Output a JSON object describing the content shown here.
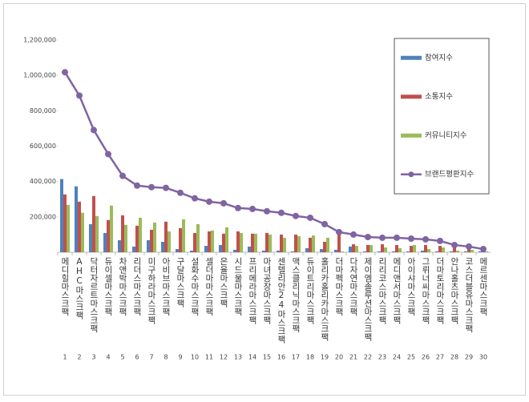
{
  "chart_data": {
    "type": "bar",
    "categories": [
      "메디힐마스크팩",
      "AHC마스크팩",
      "닥터자르트마스크팩",
      "듀이셀마스크팩",
      "차앤박마스크팩",
      "리더스마스크팩",
      "미구하라마스크팩",
      "아비브마스크팩",
      "구달마스크팩",
      "설화수마스크팩",
      "셀더마마스크팩",
      "은율마스크팩",
      "시드물마스크팩",
      "프리메라마스크팩",
      "마녀공장마스크팩",
      "센텔리안24마스크팩",
      "맥스클리닉마스크팩",
      "듀이트리마스크팩",
      "홀리카홀리카마스크팩",
      "더마펙마스크팩",
      "다자연마스크팩",
      "제이엠솔루션마스크팩",
      "리리코스마스크팩",
      "메디앤서마스크팩",
      "아이샤마스크팩",
      "그뤼너씨마스크팩",
      "더마토리마스크팩",
      "안나홀츠마스크팩",
      "코스더블유마스크팩",
      "메르센마스크팩"
    ],
    "ranks": [
      1,
      2,
      3,
      4,
      5,
      6,
      7,
      8,
      9,
      10,
      11,
      12,
      13,
      14,
      15,
      16,
      17,
      18,
      19,
      20,
      21,
      22,
      23,
      24,
      25,
      26,
      27,
      28,
      29,
      30
    ],
    "series": [
      {
        "name": "참여지수",
        "type": "bar",
        "color": "#4f81bd",
        "values": [
          414000,
          373000,
          159000,
          109000,
          68000,
          32000,
          68000,
          59000,
          18000,
          9000,
          36000,
          41000,
          14000,
          32000,
          9000,
          9000,
          5000,
          23000,
          18000,
          14000,
          32000,
          5000,
          5000,
          5000,
          5000,
          9000,
          5000,
          5000,
          5000,
          5000
        ]
      },
      {
        "name": "소통지수",
        "type": "bar",
        "color": "#c0504d",
        "values": [
          327000,
          286000,
          318000,
          182000,
          209000,
          150000,
          127000,
          173000,
          136000,
          109000,
          118000,
          105000,
          118000,
          105000,
          109000,
          100000,
          100000,
          82000,
          59000,
          100000,
          45000,
          41000,
          45000,
          41000,
          36000,
          41000,
          36000,
          27000,
          18000,
          14000
        ]
      },
      {
        "name": "커뮤니티지수",
        "type": "bar",
        "color": "#9bbb59",
        "values": [
          268000,
          223000,
          205000,
          264000,
          155000,
          195000,
          168000,
          118000,
          186000,
          159000,
          123000,
          141000,
          109000,
          105000,
          100000,
          82000,
          91000,
          95000,
          82000,
          5000,
          36000,
          41000,
          27000,
          23000,
          41000,
          18000,
          27000,
          9000,
          14000,
          5000
        ]
      },
      {
        "name": "브랜드평판지수",
        "type": "line",
        "color": "#8064a2",
        "values": [
          1018000,
          886000,
          691000,
          555000,
          432000,
          377000,
          368000,
          364000,
          336000,
          305000,
          286000,
          277000,
          250000,
          245000,
          232000,
          223000,
          205000,
          195000,
          159000,
          114000,
          100000,
          86000,
          82000,
          82000,
          77000,
          73000,
          64000,
          41000,
          32000,
          18000
        ]
      }
    ],
    "ylim": [
      0,
      1200000
    ],
    "yticks": [
      {
        "value": 200000,
        "label": "200,000"
      },
      {
        "value": 400000,
        "label": "400,000"
      },
      {
        "value": 600000,
        "label": "600,000"
      },
      {
        "value": 800000,
        "label": "800,000"
      },
      {
        "value": 1000000,
        "label": "1,000,000"
      },
      {
        "value": 1200000,
        "label": "1,200,000"
      }
    ],
    "legend": "upper right"
  }
}
